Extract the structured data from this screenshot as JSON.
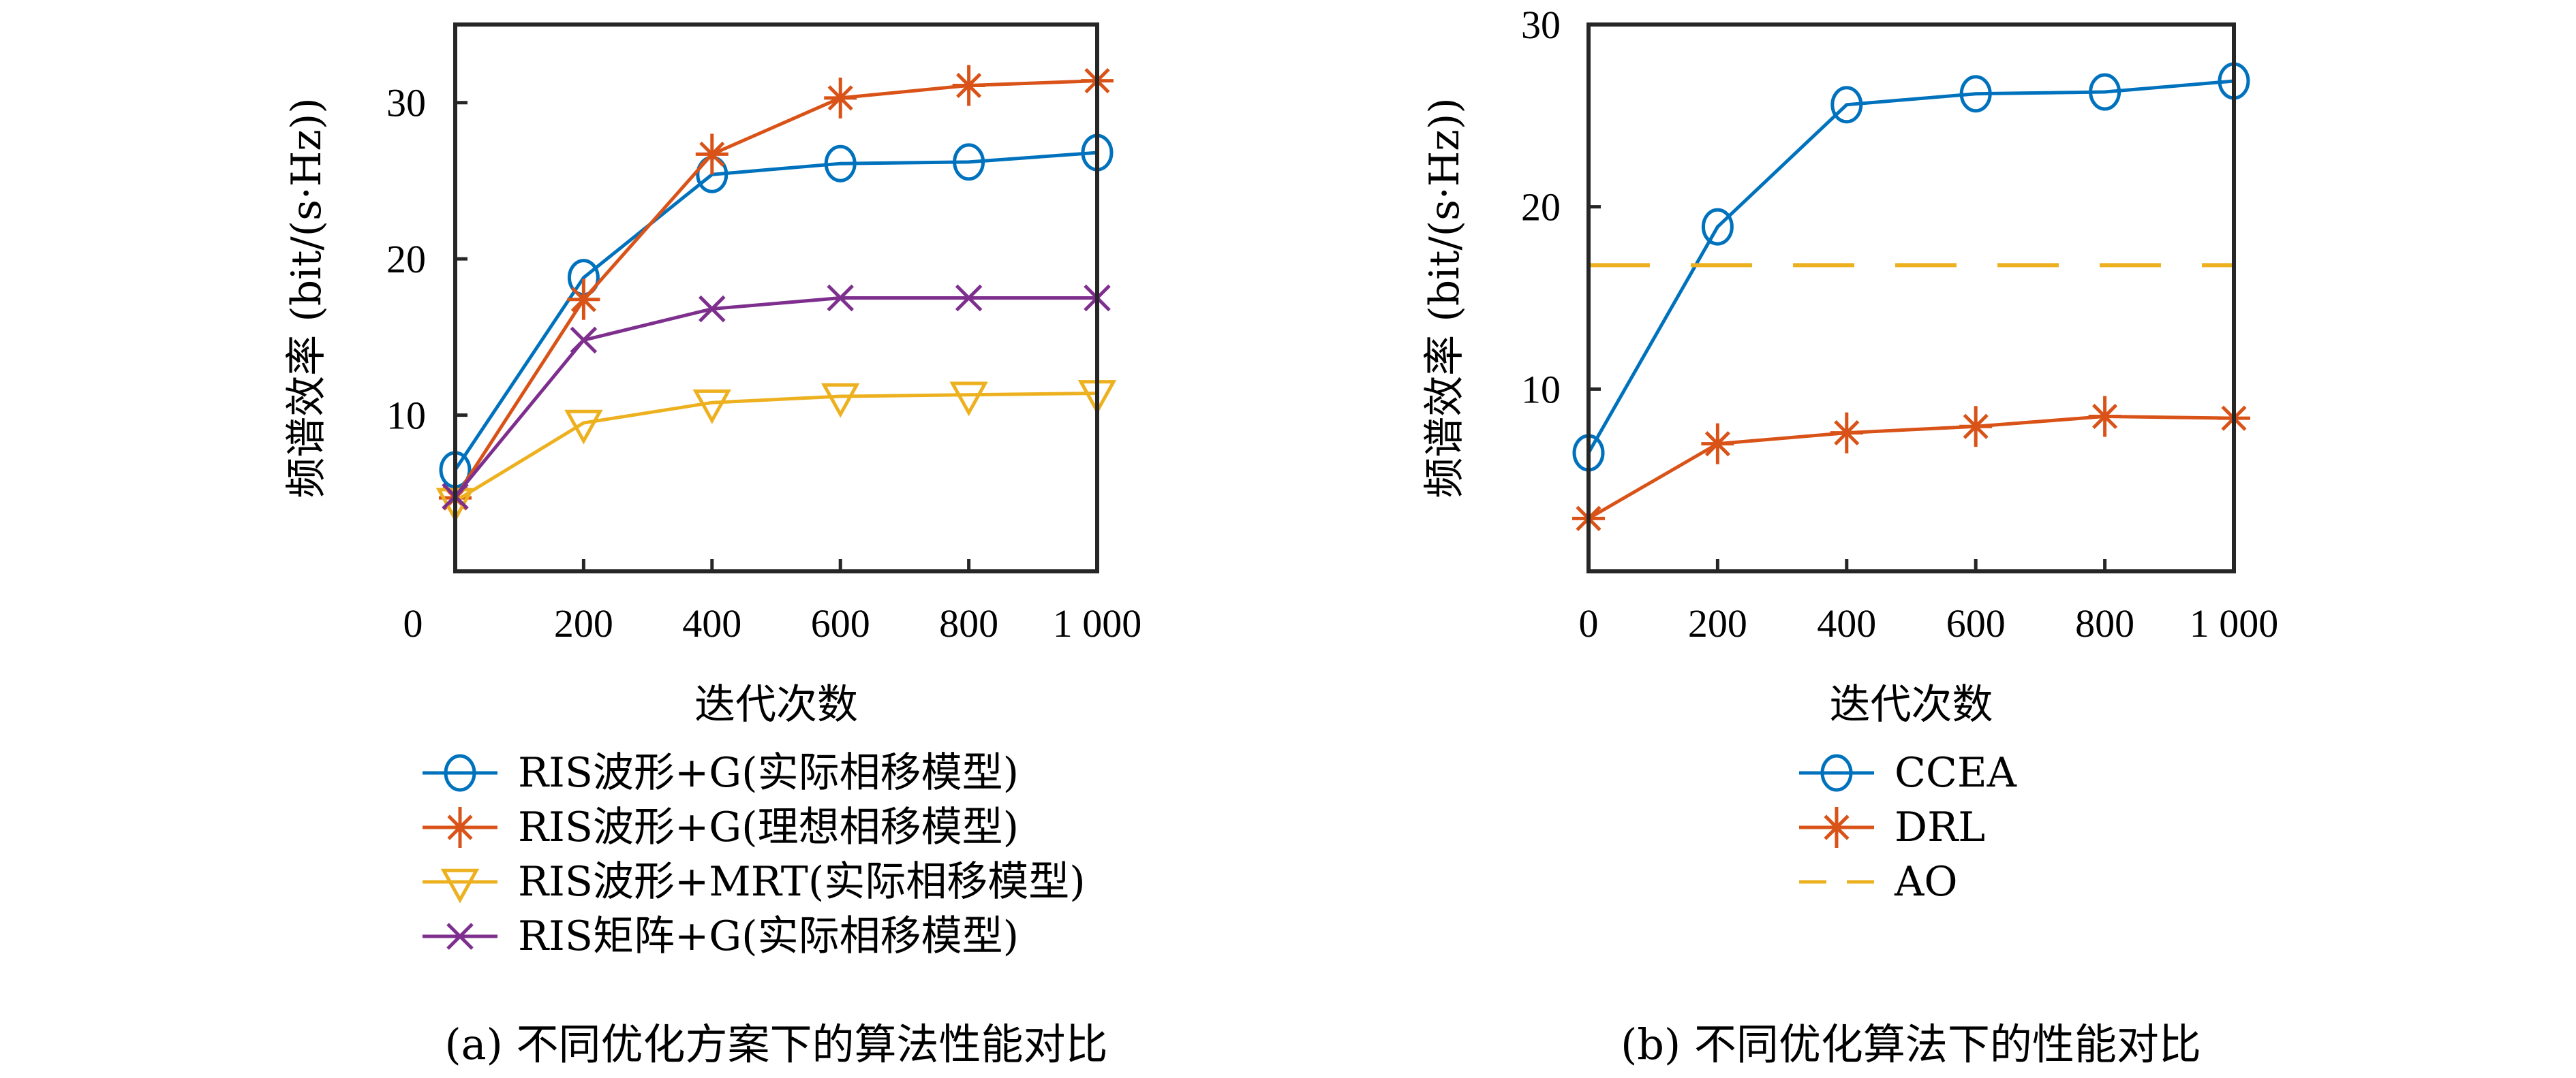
{
  "colors": {
    "axis": "#262626",
    "blue": "#0072BD",
    "orange": "#D95319",
    "yellow": "#EDB120",
    "purple": "#7E2F8E"
  },
  "chart_data": [
    {
      "id": "a",
      "type": "line",
      "title": "",
      "caption": "(a) 不同优化方案下的算法性能对比",
      "xlabel": "迭代次数",
      "ylabel": "频谱效率 (bit/(s·Hz))",
      "xlim": [
        0,
        1000
      ],
      "ylim": [
        0,
        35
      ],
      "x_ticks": [
        0,
        200,
        400,
        600,
        800,
        1000
      ],
      "x_tick_labels": [
        "0",
        "200",
        "400",
        "600",
        "800",
        "1 000"
      ],
      "y_ticks": [
        10,
        20,
        30
      ],
      "y_tick_labels": [
        "10",
        "20",
        "30"
      ],
      "grid": false,
      "legend_position": "below",
      "x": [
        0,
        200,
        400,
        600,
        800,
        1000
      ],
      "series": [
        {
          "name": "RIS波形+G(实际相移模型)",
          "color": "blue",
          "marker": "circle",
          "line": "solid",
          "values": [
            6.5,
            18.8,
            25.4,
            26.1,
            26.2,
            26.8
          ]
        },
        {
          "name": "RIS波形+G(理想相移模型)",
          "color": "orange",
          "marker": "asterisk",
          "line": "solid",
          "values": [
            4.7,
            17.4,
            26.7,
            30.3,
            31.1,
            31.4
          ]
        },
        {
          "name": "RIS波形+MRT(实际相移模型)",
          "color": "yellow",
          "marker": "triangle-down",
          "line": "solid",
          "values": [
            4.5,
            9.5,
            10.8,
            11.2,
            11.3,
            11.4
          ]
        },
        {
          "name": "RIS矩阵+G(实际相移模型)",
          "color": "purple",
          "marker": "x",
          "line": "solid",
          "values": [
            4.8,
            14.8,
            16.8,
            17.5,
            17.5,
            17.5
          ]
        }
      ]
    },
    {
      "id": "b",
      "type": "line",
      "title": "",
      "caption": "(b) 不同优化算法下的性能对比",
      "xlabel": "迭代次数",
      "ylabel": "频谱效率 (bit/(s·Hz))",
      "xlim": [
        0,
        1000
      ],
      "ylim": [
        0,
        30
      ],
      "x_ticks": [
        0,
        200,
        400,
        600,
        800,
        1000
      ],
      "x_tick_labels": [
        "0",
        "200",
        "400",
        "600",
        "800",
        "1 000"
      ],
      "y_ticks": [
        10,
        20,
        30
      ],
      "y_tick_labels": [
        "10",
        "20",
        "30"
      ],
      "grid": false,
      "legend_position": "below",
      "x": [
        0,
        200,
        400,
        600,
        800,
        1000
      ],
      "series": [
        {
          "name": "CCEA",
          "color": "blue",
          "marker": "circle",
          "line": "solid",
          "values": [
            6.5,
            18.9,
            25.6,
            26.2,
            26.3,
            26.9
          ]
        },
        {
          "name": "DRL",
          "color": "orange",
          "marker": "asterisk",
          "line": "solid",
          "values": [
            2.9,
            7.0,
            7.6,
            7.95,
            8.5,
            8.4
          ]
        },
        {
          "name": "AO",
          "color": "yellow",
          "marker": "none",
          "line": "dashed",
          "values": [
            16.8,
            16.8,
            16.8,
            16.8,
            16.8,
            16.8
          ]
        }
      ]
    }
  ]
}
